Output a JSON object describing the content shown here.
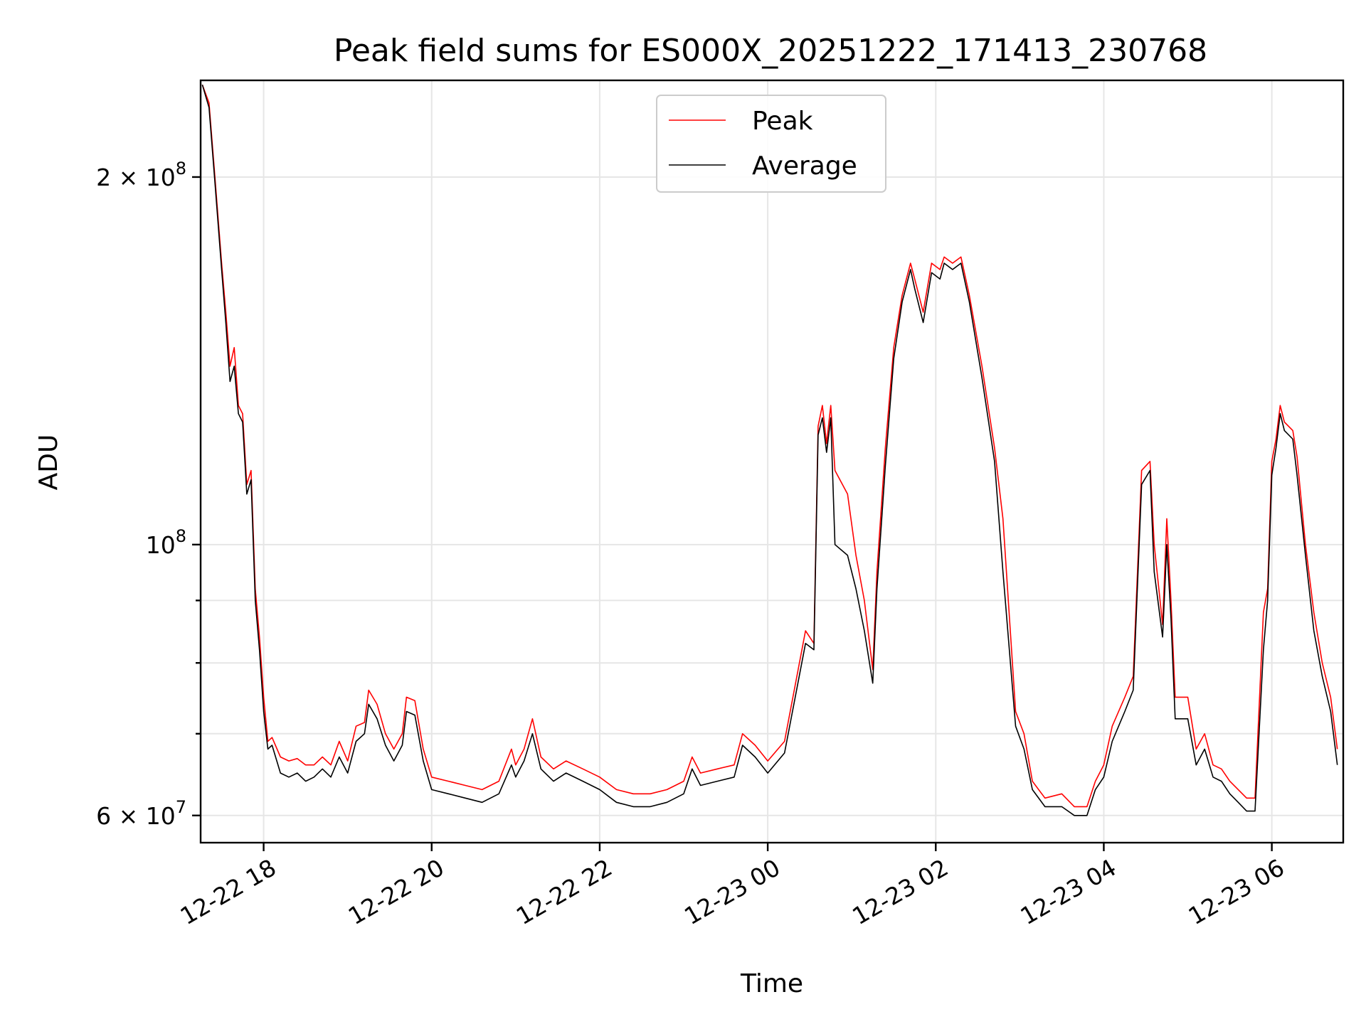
{
  "chart_data": {
    "type": "line",
    "title": "Peak field sums for ES000X_20251222_171413_230768",
    "xlabel": "Time",
    "ylabel": "ADU",
    "yscale": "log",
    "xlim": [
      17.25,
      30.85
    ],
    "ylim": [
      57000000,
      240000000
    ],
    "x_unit": "hours since 2025-12-22 00:00",
    "x_ticks": [
      {
        "value": 18,
        "label": "12-22 18"
      },
      {
        "value": 20,
        "label": "12-22 20"
      },
      {
        "value": 22,
        "label": "12-22 22"
      },
      {
        "value": 24,
        "label": "12-23 00"
      },
      {
        "value": 26,
        "label": "12-23 02"
      },
      {
        "value": 28,
        "label": "12-23 04"
      },
      {
        "value": 30,
        "label": "12-23 06"
      }
    ],
    "y_major_ticks": [
      {
        "value": 60000000,
        "label_mant": "6",
        "label_exp": "7",
        "has_mantissa": true
      },
      {
        "value": 100000000,
        "label_mant": "",
        "label_exp": "8",
        "has_mantissa": false
      },
      {
        "value": 200000000,
        "label_mant": "2",
        "label_exp": "8",
        "has_mantissa": true
      }
    ],
    "y_minor_gridlines": [
      70000000,
      80000000,
      90000000
    ],
    "legend": {
      "position": "top-center",
      "entries": [
        {
          "name": "Peak",
          "color": "#ff0000"
        },
        {
          "name": "Average",
          "color": "#000000"
        }
      ]
    },
    "series": [
      {
        "name": "Peak",
        "color": "#ff0000",
        "points": [
          [
            17.27,
            238000000
          ],
          [
            17.35,
            230000000
          ],
          [
            17.42,
            200000000
          ],
          [
            17.5,
            170000000
          ],
          [
            17.55,
            155000000
          ],
          [
            17.6,
            140000000
          ],
          [
            17.65,
            145000000
          ],
          [
            17.7,
            130000000
          ],
          [
            17.75,
            128000000
          ],
          [
            17.8,
            112000000
          ],
          [
            17.85,
            115000000
          ],
          [
            17.9,
            92000000
          ],
          [
            17.95,
            84000000
          ],
          [
            18.0,
            75000000
          ],
          [
            18.05,
            69000000
          ],
          [
            18.1,
            69500000
          ],
          [
            18.2,
            67000000
          ],
          [
            18.3,
            66500000
          ],
          [
            18.4,
            66800000
          ],
          [
            18.5,
            66000000
          ],
          [
            18.6,
            66000000
          ],
          [
            18.7,
            67000000
          ],
          [
            18.8,
            66000000
          ],
          [
            18.9,
            69000000
          ],
          [
            19.0,
            66500000
          ],
          [
            19.1,
            71000000
          ],
          [
            19.2,
            71500000
          ],
          [
            19.25,
            76000000
          ],
          [
            19.35,
            74000000
          ],
          [
            19.45,
            70000000
          ],
          [
            19.55,
            68000000
          ],
          [
            19.65,
            70000000
          ],
          [
            19.7,
            75000000
          ],
          [
            19.8,
            74500000
          ],
          [
            19.9,
            68000000
          ],
          [
            20.0,
            64500000
          ],
          [
            20.2,
            64000000
          ],
          [
            20.4,
            63500000
          ],
          [
            20.6,
            63000000
          ],
          [
            20.8,
            64000000
          ],
          [
            20.95,
            68000000
          ],
          [
            21.0,
            66000000
          ],
          [
            21.1,
            68000000
          ],
          [
            21.2,
            72000000
          ],
          [
            21.3,
            67000000
          ],
          [
            21.45,
            65500000
          ],
          [
            21.6,
            66500000
          ],
          [
            21.8,
            65500000
          ],
          [
            22.0,
            64500000
          ],
          [
            22.2,
            63000000
          ],
          [
            22.4,
            62500000
          ],
          [
            22.6,
            62500000
          ],
          [
            22.8,
            63000000
          ],
          [
            23.0,
            64000000
          ],
          [
            23.1,
            67000000
          ],
          [
            23.2,
            65000000
          ],
          [
            23.4,
            65500000
          ],
          [
            23.6,
            66000000
          ],
          [
            23.7,
            70000000
          ],
          [
            23.85,
            68500000
          ],
          [
            24.0,
            66500000
          ],
          [
            24.2,
            69000000
          ],
          [
            24.45,
            85000000
          ],
          [
            24.55,
            83000000
          ],
          [
            24.6,
            125000000
          ],
          [
            24.65,
            130000000
          ],
          [
            24.7,
            121000000
          ],
          [
            24.75,
            130000000
          ],
          [
            24.8,
            115000000
          ],
          [
            24.95,
            110000000
          ],
          [
            25.05,
            98000000
          ],
          [
            25.15,
            90000000
          ],
          [
            25.25,
            79000000
          ],
          [
            25.3,
            95000000
          ],
          [
            25.4,
            120000000
          ],
          [
            25.5,
            145000000
          ],
          [
            25.6,
            160000000
          ],
          [
            25.7,
            170000000
          ],
          [
            25.75,
            165000000
          ],
          [
            25.85,
            155000000
          ],
          [
            25.95,
            170000000
          ],
          [
            26.05,
            168000000
          ],
          [
            26.1,
            172000000
          ],
          [
            26.2,
            170000000
          ],
          [
            26.3,
            172000000
          ],
          [
            26.4,
            160000000
          ],
          [
            26.55,
            140000000
          ],
          [
            26.7,
            120000000
          ],
          [
            26.8,
            105000000
          ],
          [
            26.95,
            73000000
          ],
          [
            27.05,
            70000000
          ],
          [
            27.15,
            64000000
          ],
          [
            27.3,
            62000000
          ],
          [
            27.5,
            62500000
          ],
          [
            27.65,
            61000000
          ],
          [
            27.8,
            61000000
          ],
          [
            27.9,
            64000000
          ],
          [
            28.0,
            66000000
          ],
          [
            28.1,
            71000000
          ],
          [
            28.25,
            75000000
          ],
          [
            28.35,
            78000000
          ],
          [
            28.45,
            115000000
          ],
          [
            28.55,
            117000000
          ],
          [
            28.6,
            100000000
          ],
          [
            28.7,
            86000000
          ],
          [
            28.75,
            105000000
          ],
          [
            28.8,
            90000000
          ],
          [
            28.85,
            75000000
          ],
          [
            29.0,
            75000000
          ],
          [
            29.1,
            68000000
          ],
          [
            29.2,
            70000000
          ],
          [
            29.3,
            66000000
          ],
          [
            29.4,
            65500000
          ],
          [
            29.5,
            64000000
          ],
          [
            29.6,
            63000000
          ],
          [
            29.7,
            62000000
          ],
          [
            29.8,
            62000000
          ],
          [
            29.9,
            88000000
          ],
          [
            29.95,
            92000000
          ],
          [
            30.0,
            117000000
          ],
          [
            30.05,
            122000000
          ],
          [
            30.1,
            130000000
          ],
          [
            30.15,
            126000000
          ],
          [
            30.25,
            124000000
          ],
          [
            30.3,
            118000000
          ],
          [
            30.4,
            100000000
          ],
          [
            30.5,
            88000000
          ],
          [
            30.6,
            80000000
          ],
          [
            30.7,
            75000000
          ],
          [
            30.78,
            68000000
          ]
        ]
      },
      {
        "name": "Average",
        "color": "#000000",
        "points": [
          [
            17.27,
            238000000
          ],
          [
            17.35,
            228000000
          ],
          [
            17.42,
            198000000
          ],
          [
            17.5,
            168000000
          ],
          [
            17.55,
            152000000
          ],
          [
            17.6,
            136000000
          ],
          [
            17.65,
            140000000
          ],
          [
            17.7,
            128000000
          ],
          [
            17.75,
            126000000
          ],
          [
            17.8,
            110000000
          ],
          [
            17.85,
            113000000
          ],
          [
            17.9,
            90000000
          ],
          [
            17.95,
            82000000
          ],
          [
            18.0,
            73000000
          ],
          [
            18.05,
            68000000
          ],
          [
            18.1,
            68500000
          ],
          [
            18.2,
            65000000
          ],
          [
            18.3,
            64500000
          ],
          [
            18.4,
            65000000
          ],
          [
            18.5,
            64000000
          ],
          [
            18.6,
            64500000
          ],
          [
            18.7,
            65500000
          ],
          [
            18.8,
            64500000
          ],
          [
            18.9,
            67000000
          ],
          [
            19.0,
            65000000
          ],
          [
            19.1,
            69000000
          ],
          [
            19.2,
            70000000
          ],
          [
            19.25,
            74000000
          ],
          [
            19.35,
            72000000
          ],
          [
            19.45,
            68500000
          ],
          [
            19.55,
            66500000
          ],
          [
            19.65,
            68500000
          ],
          [
            19.7,
            73000000
          ],
          [
            19.8,
            72500000
          ],
          [
            19.9,
            66500000
          ],
          [
            20.0,
            63000000
          ],
          [
            20.2,
            62500000
          ],
          [
            20.4,
            62000000
          ],
          [
            20.6,
            61500000
          ],
          [
            20.8,
            62500000
          ],
          [
            20.95,
            66000000
          ],
          [
            21.0,
            64500000
          ],
          [
            21.1,
            66500000
          ],
          [
            21.2,
            70000000
          ],
          [
            21.3,
            65500000
          ],
          [
            21.45,
            64000000
          ],
          [
            21.6,
            65000000
          ],
          [
            21.8,
            64000000
          ],
          [
            22.0,
            63000000
          ],
          [
            22.2,
            61500000
          ],
          [
            22.4,
            61000000
          ],
          [
            22.6,
            61000000
          ],
          [
            22.8,
            61500000
          ],
          [
            23.0,
            62500000
          ],
          [
            23.1,
            65500000
          ],
          [
            23.2,
            63500000
          ],
          [
            23.4,
            64000000
          ],
          [
            23.6,
            64500000
          ],
          [
            23.7,
            68500000
          ],
          [
            23.85,
            67000000
          ],
          [
            24.0,
            65000000
          ],
          [
            24.2,
            67500000
          ],
          [
            24.45,
            83000000
          ],
          [
            24.55,
            82000000
          ],
          [
            24.6,
            123000000
          ],
          [
            24.65,
            127000000
          ],
          [
            24.7,
            119000000
          ],
          [
            24.75,
            127000000
          ],
          [
            24.8,
            100000000
          ],
          [
            24.95,
            98000000
          ],
          [
            25.05,
            92000000
          ],
          [
            25.15,
            85000000
          ],
          [
            25.25,
            77000000
          ],
          [
            25.3,
            92000000
          ],
          [
            25.4,
            116000000
          ],
          [
            25.5,
            142000000
          ],
          [
            25.6,
            158000000
          ],
          [
            25.7,
            168000000
          ],
          [
            25.75,
            162000000
          ],
          [
            25.85,
            152000000
          ],
          [
            25.95,
            167000000
          ],
          [
            26.05,
            165000000
          ],
          [
            26.1,
            170000000
          ],
          [
            26.2,
            168000000
          ],
          [
            26.3,
            170000000
          ],
          [
            26.4,
            158000000
          ],
          [
            26.55,
            137000000
          ],
          [
            26.7,
            117000000
          ],
          [
            26.8,
            95000000
          ],
          [
            26.95,
            71000000
          ],
          [
            27.05,
            68000000
          ],
          [
            27.15,
            63000000
          ],
          [
            27.3,
            61000000
          ],
          [
            27.5,
            61000000
          ],
          [
            27.65,
            60000000
          ],
          [
            27.8,
            60000000
          ],
          [
            27.9,
            63000000
          ],
          [
            28.0,
            64500000
          ],
          [
            28.1,
            69000000
          ],
          [
            28.25,
            73000000
          ],
          [
            28.35,
            76000000
          ],
          [
            28.45,
            112000000
          ],
          [
            28.55,
            115000000
          ],
          [
            28.6,
            95000000
          ],
          [
            28.7,
            84000000
          ],
          [
            28.75,
            100000000
          ],
          [
            28.8,
            87000000
          ],
          [
            28.85,
            72000000
          ],
          [
            29.0,
            72000000
          ],
          [
            29.1,
            66000000
          ],
          [
            29.2,
            68000000
          ],
          [
            29.3,
            64500000
          ],
          [
            29.4,
            64000000
          ],
          [
            29.5,
            62500000
          ],
          [
            29.6,
            61500000
          ],
          [
            29.7,
            60500000
          ],
          [
            29.8,
            60500000
          ],
          [
            29.9,
            82000000
          ],
          [
            29.95,
            90000000
          ],
          [
            30.0,
            114000000
          ],
          [
            30.05,
            120000000
          ],
          [
            30.1,
            128000000
          ],
          [
            30.15,
            124000000
          ],
          [
            30.25,
            122000000
          ],
          [
            30.3,
            114000000
          ],
          [
            30.4,
            98000000
          ],
          [
            30.5,
            85000000
          ],
          [
            30.6,
            78000000
          ],
          [
            30.7,
            73000000
          ],
          [
            30.78,
            66000000
          ]
        ]
      }
    ]
  }
}
